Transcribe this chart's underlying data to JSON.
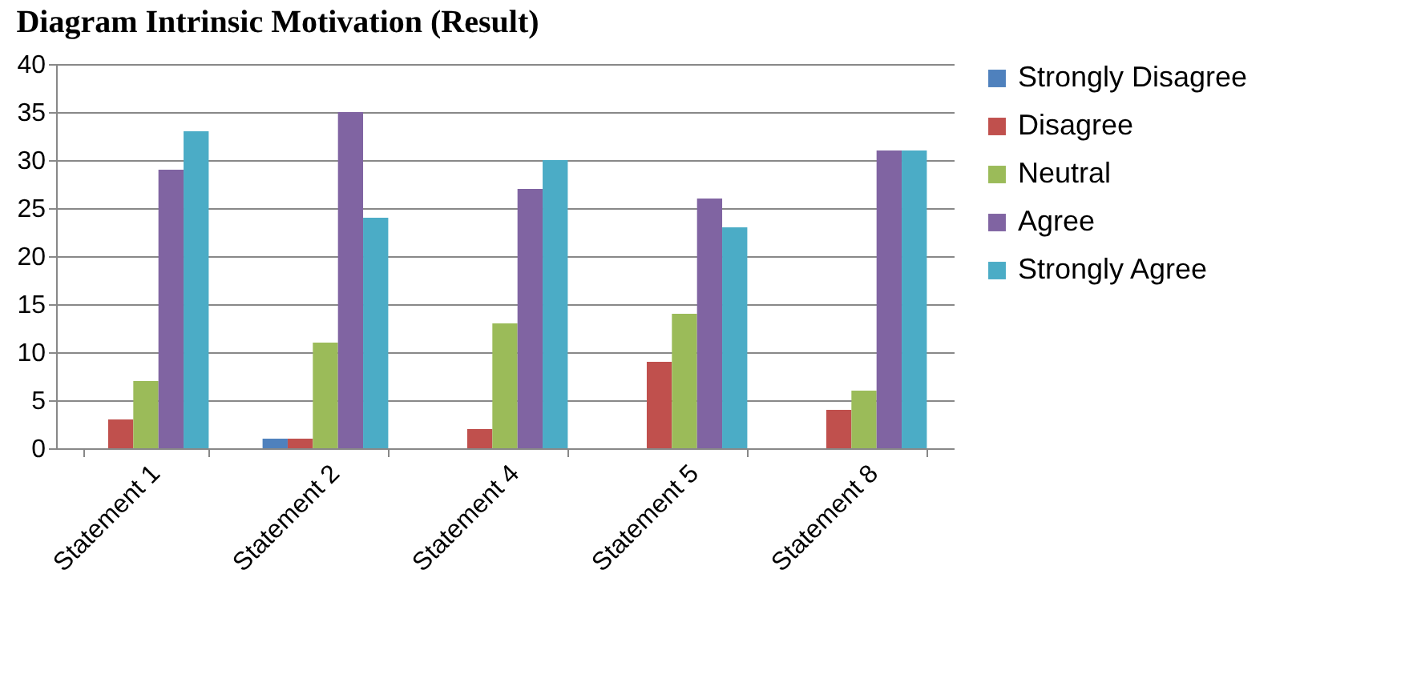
{
  "chart_data": {
    "type": "bar",
    "title": "Diagram Intrinsic Motivation (Result)",
    "categories": [
      "Statement 1",
      "Statement 2",
      "Statement 4",
      "Statement 5",
      "Statement 8"
    ],
    "series": [
      {
        "name": "Strongly Disagree",
        "color": "#4f81bd",
        "values": [
          0,
          1,
          0,
          0,
          0
        ]
      },
      {
        "name": "Disagree",
        "color": "#c0504d",
        "values": [
          3,
          1,
          2,
          9,
          4
        ]
      },
      {
        "name": "Neutral",
        "color": "#9bbb59",
        "values": [
          7,
          11,
          13,
          14,
          6
        ]
      },
      {
        "name": "Agree",
        "color": "#8064a2",
        "values": [
          29,
          35,
          27,
          26,
          31
        ]
      },
      {
        "name": "Strongly Agree",
        "color": "#4bacc6",
        "values": [
          33,
          24,
          30,
          23,
          31
        ]
      }
    ],
    "ylim": [
      0,
      40
    ],
    "yticks": [
      0,
      5,
      10,
      15,
      20,
      25,
      30,
      35,
      40
    ],
    "grid": "y",
    "legend": "right"
  }
}
